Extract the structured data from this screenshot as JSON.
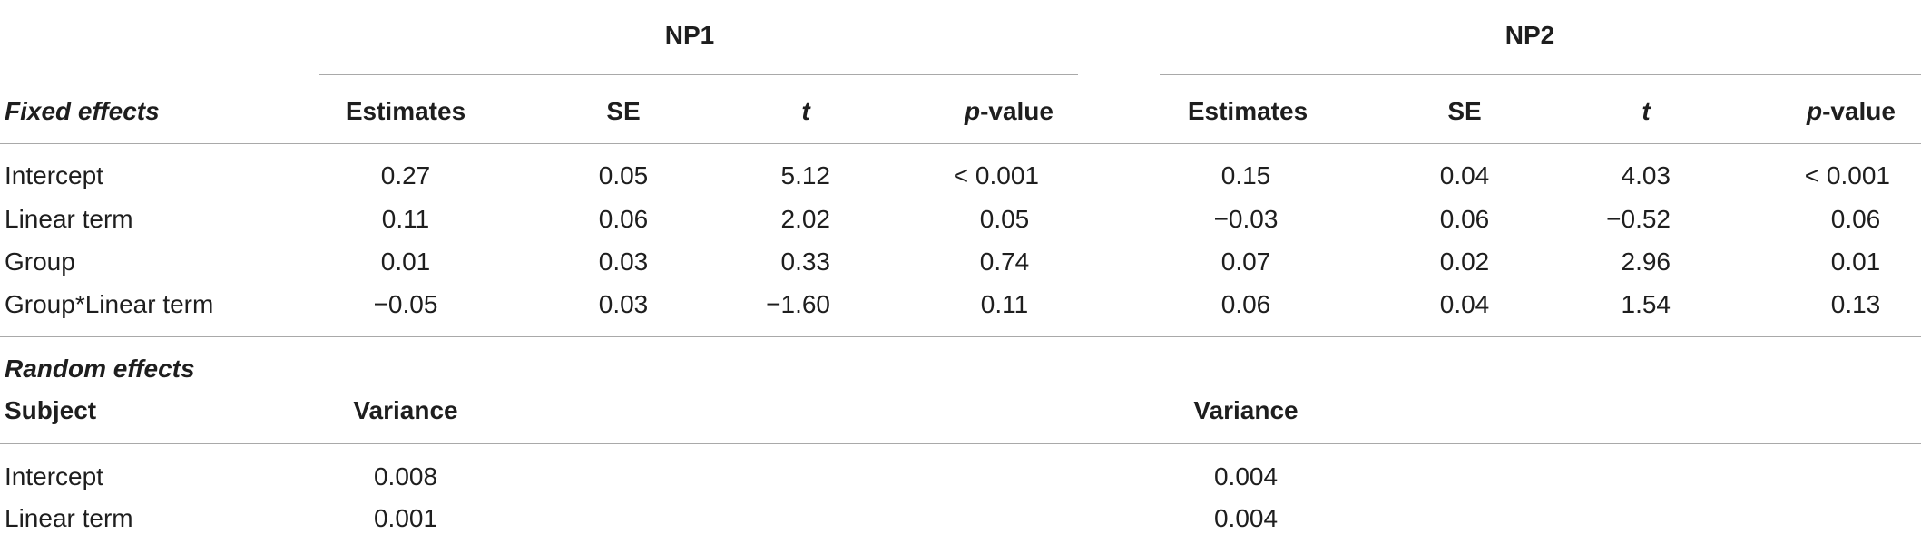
{
  "groups": {
    "np1": "NP1",
    "np2": "NP2"
  },
  "fixed": {
    "label": "Fixed effects",
    "columns": {
      "estimates": "Estimates",
      "se": "SE",
      "t": "t",
      "p_italic": "p",
      "p_rest": "-value"
    },
    "rows": [
      {
        "label": "Intercept",
        "np1": [
          "0.27",
          "0.05",
          "5.12",
          "< 0.001"
        ],
        "np2": [
          "0.15",
          "0.04",
          "4.03",
          "< 0.001"
        ]
      },
      {
        "label": "Linear term",
        "np1": [
          "0.11",
          "0.06",
          "2.02",
          "0.05"
        ],
        "np2": [
          "−0.03",
          "0.06",
          "−0.52",
          "0.06"
        ]
      },
      {
        "label": "Group",
        "np1": [
          "0.01",
          "0.03",
          "0.33",
          "0.74"
        ],
        "np2": [
          "0.07",
          "0.02",
          "2.96",
          "0.01"
        ]
      },
      {
        "label": "Group*Linear term",
        "np1": [
          "−0.05",
          "0.03",
          "−1.60",
          "0.11"
        ],
        "np2": [
          "0.06",
          "0.04",
          "1.54",
          "0.13"
        ]
      }
    ]
  },
  "random": {
    "label": "Random effects",
    "subject_label": "Subject",
    "variance_label": "Variance",
    "rows": [
      {
        "label": "Intercept",
        "np1": "0.008",
        "np2": "0.004"
      },
      {
        "label": "Linear term",
        "np1": "0.001",
        "np2": "0.004"
      }
    ]
  }
}
